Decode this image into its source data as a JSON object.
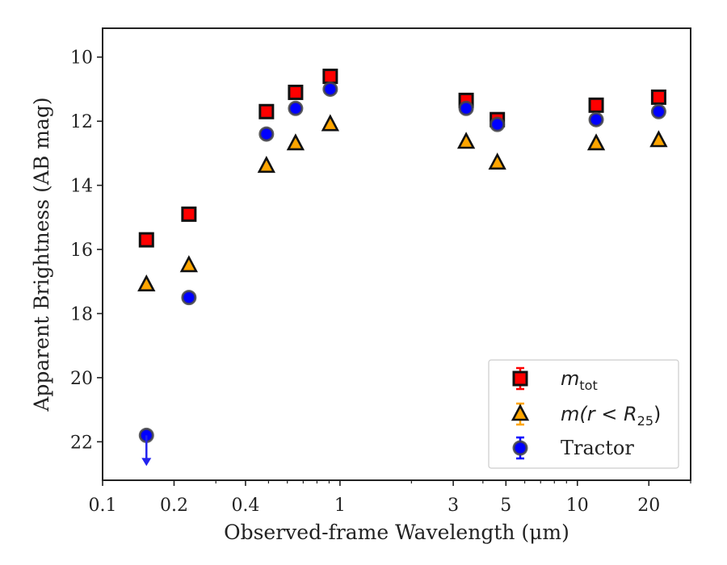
{
  "chart_data": {
    "type": "scatter",
    "xlabel": "Observed-frame Wavelength (μm)",
    "ylabel": "Apparent Brightness (AB mag)",
    "xscale": "log",
    "xlim": [
      0.1,
      30
    ],
    "ylim": [
      23.2,
      9.1
    ],
    "y_inverted": true,
    "x_ticks": [
      {
        "value": 0.1,
        "label": "0.1"
      },
      {
        "value": 0.2,
        "label": "0.2"
      },
      {
        "value": 0.4,
        "label": "0.4"
      },
      {
        "value": 1,
        "label": "1"
      },
      {
        "value": 3,
        "label": "3"
      },
      {
        "value": 5,
        "label": "5"
      },
      {
        "value": 10,
        "label": "10"
      },
      {
        "value": 20,
        "label": "20"
      }
    ],
    "y_ticks": [
      {
        "value": 10,
        "label": "10"
      },
      {
        "value": 12,
        "label": "12"
      },
      {
        "value": 14,
        "label": "14"
      },
      {
        "value": 16,
        "label": "16"
      },
      {
        "value": 18,
        "label": "18"
      },
      {
        "value": 20,
        "label": "20"
      },
      {
        "value": 22,
        "label": "22"
      }
    ],
    "grid": false,
    "legend_position": "lower-right",
    "series": [
      {
        "name": "m_tot",
        "legend_label": "m",
        "legend_sub": "tot",
        "marker": "square",
        "color": "#ff0000",
        "edge": "#111111",
        "points": [
          {
            "x": 0.153,
            "y": 15.7
          },
          {
            "x": 0.231,
            "y": 14.9
          },
          {
            "x": 0.49,
            "y": 11.7
          },
          {
            "x": 0.65,
            "y": 11.1
          },
          {
            "x": 0.91,
            "y": 10.6
          },
          {
            "x": 3.4,
            "y": 11.35
          },
          {
            "x": 4.6,
            "y": 11.95
          },
          {
            "x": 12.0,
            "y": 11.5
          },
          {
            "x": 22.0,
            "y": 11.25
          }
        ]
      },
      {
        "name": "m(r < R25)",
        "legend_label": "m(r < R",
        "legend_sub": "25",
        "legend_tail": ")",
        "marker": "triangle",
        "color": "#ffa500",
        "edge": "#111111",
        "points": [
          {
            "x": 0.153,
            "y": 17.1
          },
          {
            "x": 0.231,
            "y": 16.5
          },
          {
            "x": 0.49,
            "y": 13.4
          },
          {
            "x": 0.65,
            "y": 12.7
          },
          {
            "x": 0.91,
            "y": 12.1
          },
          {
            "x": 3.4,
            "y": 12.65
          },
          {
            "x": 4.6,
            "y": 13.3
          },
          {
            "x": 12.0,
            "y": 12.7
          },
          {
            "x": 22.0,
            "y": 12.6
          }
        ]
      },
      {
        "name": "Tractor",
        "legend_label": "Tractor",
        "marker": "circle",
        "color": "#0000ff",
        "edge": "#444444",
        "points": [
          {
            "x": 0.153,
            "y": 21.8,
            "upper_limit": true
          },
          {
            "x": 0.231,
            "y": 17.5
          },
          {
            "x": 0.49,
            "y": 12.4
          },
          {
            "x": 0.65,
            "y": 11.6
          },
          {
            "x": 0.91,
            "y": 11.0
          },
          {
            "x": 3.4,
            "y": 11.6
          },
          {
            "x": 4.6,
            "y": 12.1
          },
          {
            "x": 12.0,
            "y": 11.95
          },
          {
            "x": 22.0,
            "y": 11.7
          }
        ]
      }
    ]
  }
}
